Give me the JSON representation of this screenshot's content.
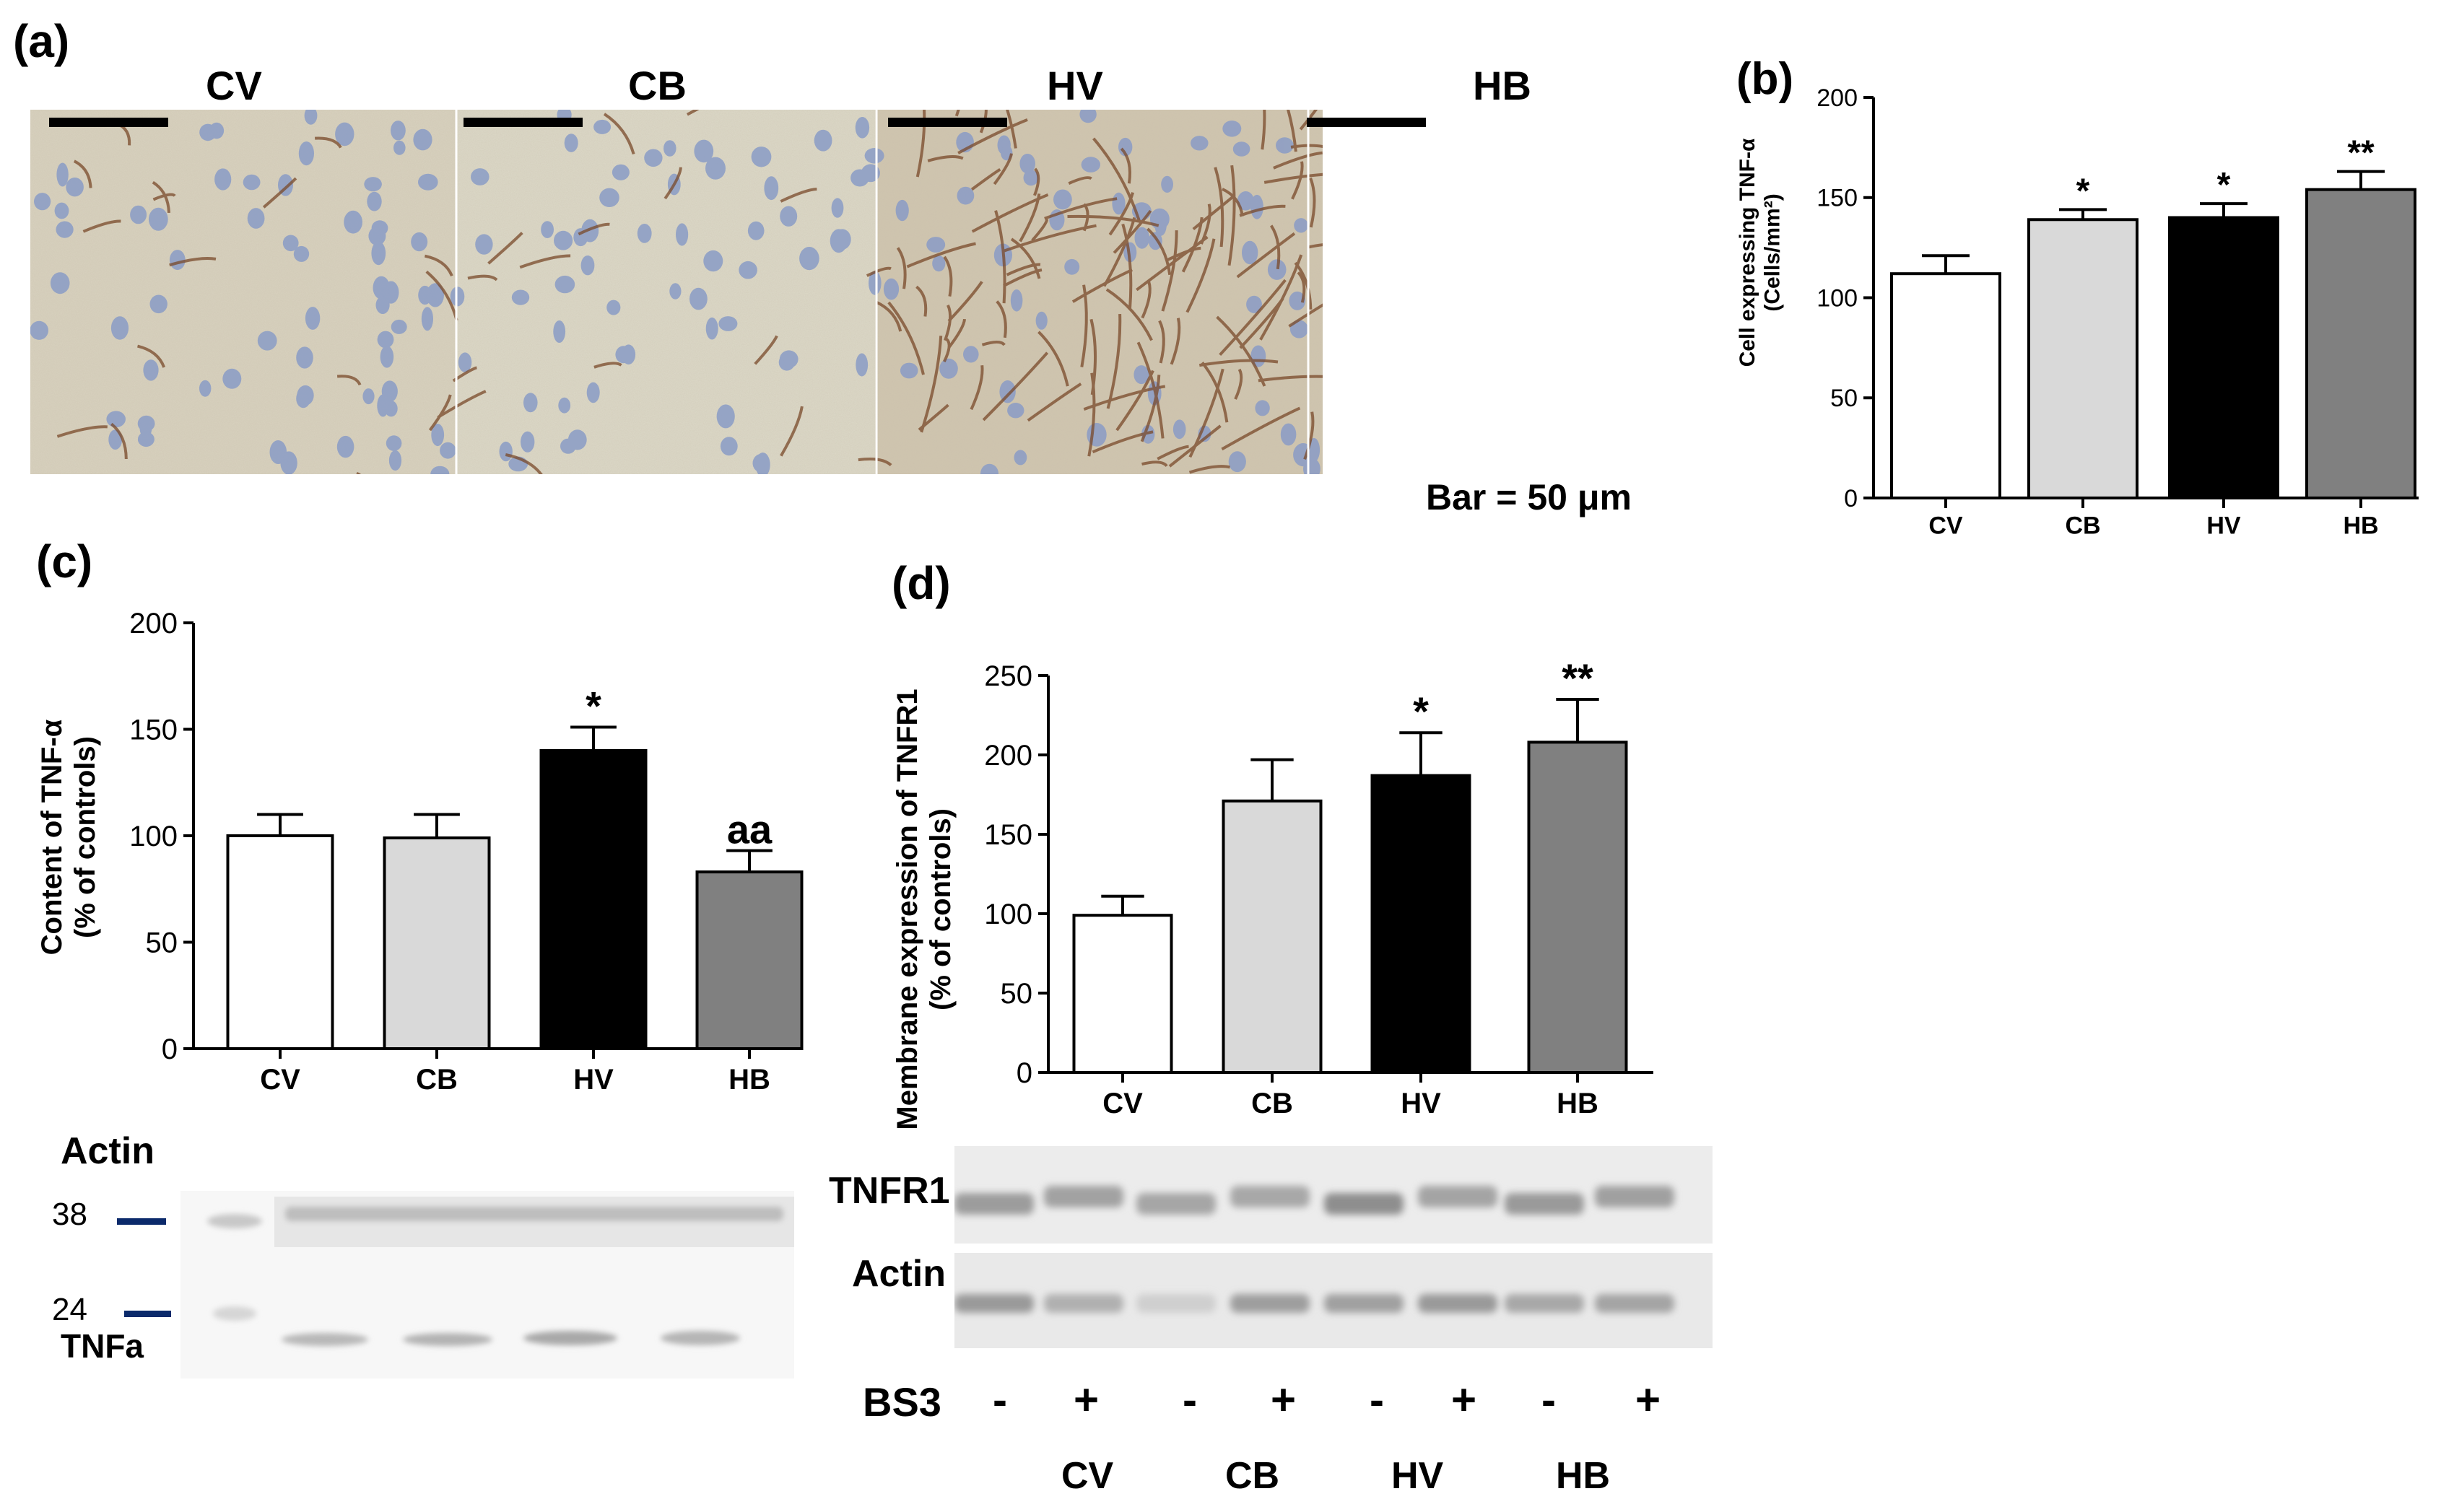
{
  "panel_a": {
    "label": "(a)",
    "groups": [
      "CV",
      "CB",
      "HV",
      "HB"
    ],
    "scale_text": "Bar = 50 μm"
  },
  "chart_data": [
    {
      "panel": "(b)",
      "type": "bar",
      "categories": [
        "CV",
        "CB",
        "HV",
        "HB"
      ],
      "values": [
        112,
        139,
        140,
        154
      ],
      "errors": [
        9,
        5,
        7,
        9
      ],
      "significance": [
        "",
        "*",
        "*",
        "**"
      ],
      "bar_colors": [
        "#ffffff",
        "#d9d9d9",
        "#000000",
        "#808080"
      ],
      "ylabel": "Cell expressing  TNF-α",
      "ylabel2": "(Cells/mm²)",
      "ylim": [
        0,
        200
      ],
      "yticks": [
        0,
        50,
        100,
        150,
        200
      ]
    },
    {
      "panel": "(c)",
      "type": "bar",
      "categories": [
        "CV",
        "CB",
        "HV",
        "HB"
      ],
      "values": [
        100,
        99,
        140,
        83
      ],
      "errors": [
        10,
        11,
        11,
        10
      ],
      "significance": [
        "",
        "",
        "*",
        "aa"
      ],
      "bar_colors": [
        "#ffffff",
        "#d9d9d9",
        "#000000",
        "#808080"
      ],
      "ylabel": "Content of TNF-α",
      "ylabel2": "(% of controls)",
      "ylim": [
        0,
        200
      ],
      "yticks": [
        0,
        50,
        100,
        150,
        200
      ]
    },
    {
      "panel": "(d)",
      "type": "bar",
      "categories": [
        "CV",
        "CB",
        "HV",
        "HB"
      ],
      "values": [
        99,
        171,
        187,
        208
      ],
      "errors": [
        12,
        26,
        27,
        27
      ],
      "significance": [
        "",
        "",
        "*",
        "**"
      ],
      "bar_colors": [
        "#ffffff",
        "#d9d9d9",
        "#000000",
        "#808080"
      ],
      "ylabel": "Membrane expression of TNFR1",
      "ylabel2": "(% of controls)",
      "ylim": [
        0,
        250
      ],
      "yticks": [
        0,
        50,
        100,
        150,
        200,
        250
      ]
    }
  ],
  "blot_c": {
    "top_label": "Actin",
    "marker_38": "38",
    "marker_24": "24",
    "bottom_label": "TNFa"
  },
  "blot_d": {
    "row1_label": "TNFR1",
    "row2_label": "Actin",
    "bs3_label": "BS3",
    "bs3_signs": [
      "-",
      "+",
      "-",
      "+",
      "-",
      "+",
      "-",
      "+"
    ],
    "groups": [
      "CV",
      "CB",
      "HV",
      "HB"
    ]
  }
}
